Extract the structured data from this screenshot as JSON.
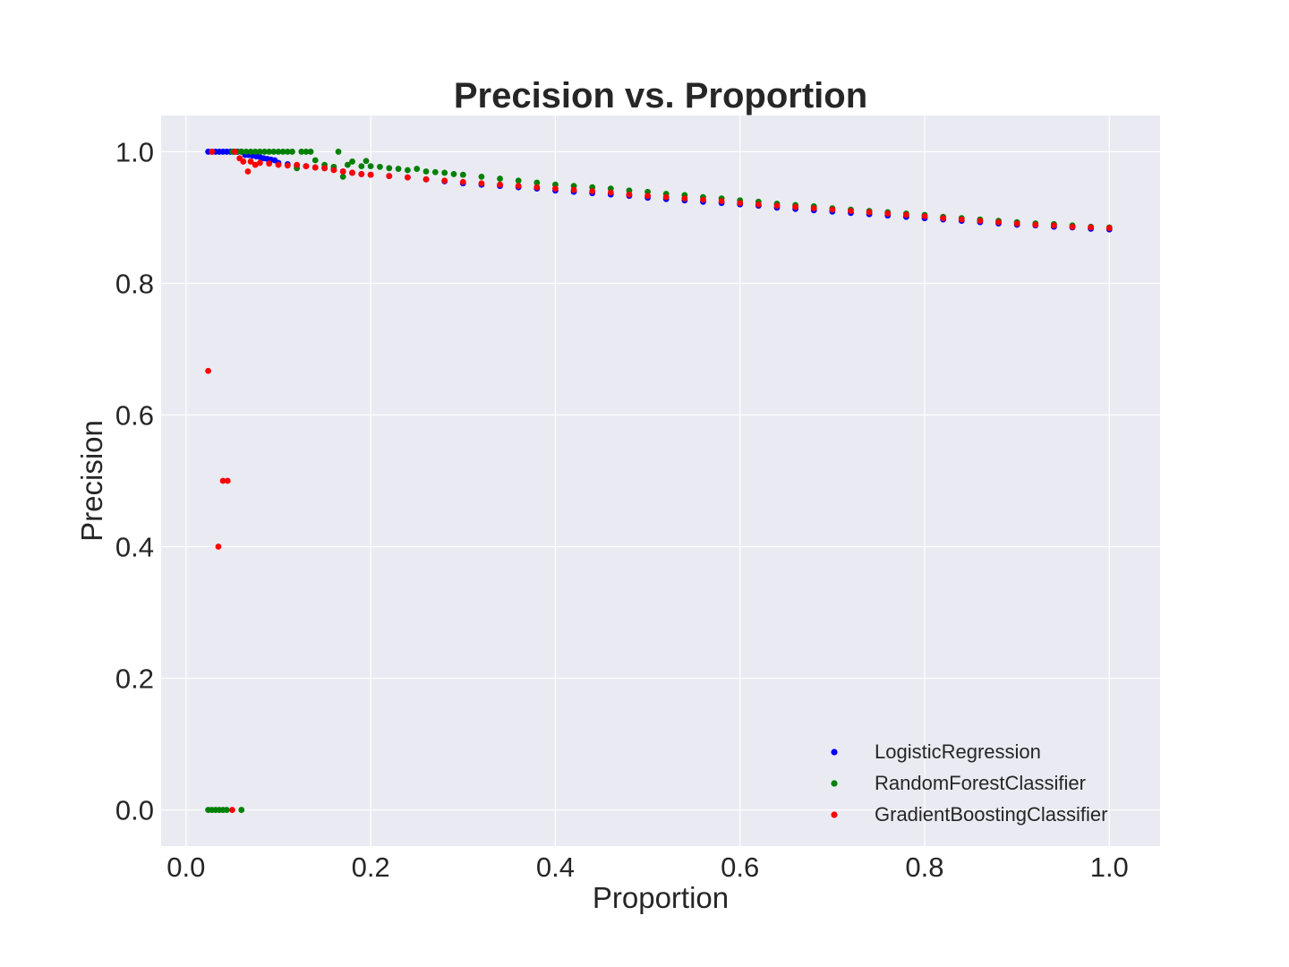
{
  "chart_data": {
    "type": "scatter",
    "title": "Precision vs. Proportion",
    "xlabel": "Proportion",
    "ylabel": "Precision",
    "xlim": [
      -0.027,
      1.055
    ],
    "ylim": [
      -0.055,
      1.055
    ],
    "xticks": [
      "0.0",
      "0.2",
      "0.4",
      "0.6",
      "0.8",
      "1.0"
    ],
    "yticks": [
      "0.0",
      "0.2",
      "0.4",
      "0.6",
      "0.8",
      "1.0"
    ],
    "grid": true,
    "legend_position": "bottom-right",
    "series": [
      {
        "name": "LogisticRegression",
        "color": "#0000ff",
        "points": [
          [
            0.024,
            1.0
          ],
          [
            0.028,
            1.0
          ],
          [
            0.032,
            1.0
          ],
          [
            0.036,
            1.0
          ],
          [
            0.04,
            1.0
          ],
          [
            0.044,
            1.0
          ],
          [
            0.048,
            1.0
          ],
          [
            0.052,
            1.0
          ],
          [
            0.056,
            1.0
          ],
          [
            0.06,
            1.0
          ],
          [
            0.064,
            0.995
          ],
          [
            0.068,
            0.995
          ],
          [
            0.072,
            0.994
          ],
          [
            0.076,
            0.993
          ],
          [
            0.08,
            0.992
          ],
          [
            0.084,
            0.99
          ],
          [
            0.088,
            0.989
          ],
          [
            0.092,
            0.988
          ],
          [
            0.096,
            0.987
          ],
          [
            0.1,
            0.983
          ],
          [
            0.11,
            0.981
          ],
          [
            0.12,
            0.979
          ],
          [
            0.13,
            0.978
          ],
          [
            0.14,
            0.976
          ],
          [
            0.15,
            0.975
          ],
          [
            0.16,
            0.973
          ],
          [
            0.17,
            0.97
          ],
          [
            0.18,
            0.968
          ],
          [
            0.19,
            0.966
          ],
          [
            0.2,
            0.965
          ],
          [
            0.22,
            0.963
          ],
          [
            0.24,
            0.961
          ],
          [
            0.26,
            0.958
          ],
          [
            0.28,
            0.955
          ],
          [
            0.3,
            0.952
          ],
          [
            0.32,
            0.95
          ],
          [
            0.34,
            0.948
          ],
          [
            0.36,
            0.946
          ],
          [
            0.38,
            0.944
          ],
          [
            0.4,
            0.941
          ],
          [
            0.42,
            0.939
          ],
          [
            0.44,
            0.937
          ],
          [
            0.46,
            0.935
          ],
          [
            0.48,
            0.933
          ],
          [
            0.5,
            0.93
          ],
          [
            0.52,
            0.928
          ],
          [
            0.54,
            0.926
          ],
          [
            0.56,
            0.924
          ],
          [
            0.58,
            0.922
          ],
          [
            0.6,
            0.92
          ],
          [
            0.62,
            0.918
          ],
          [
            0.64,
            0.915
          ],
          [
            0.66,
            0.913
          ],
          [
            0.68,
            0.911
          ],
          [
            0.7,
            0.909
          ],
          [
            0.72,
            0.907
          ],
          [
            0.74,
            0.905
          ],
          [
            0.76,
            0.903
          ],
          [
            0.78,
            0.901
          ],
          [
            0.8,
            0.899
          ],
          [
            0.82,
            0.897
          ],
          [
            0.84,
            0.895
          ],
          [
            0.86,
            0.893
          ],
          [
            0.88,
            0.891
          ],
          [
            0.9,
            0.889
          ],
          [
            0.92,
            0.888
          ],
          [
            0.94,
            0.886
          ],
          [
            0.96,
            0.885
          ],
          [
            0.98,
            0.883
          ],
          [
            1.0,
            0.882
          ]
        ]
      },
      {
        "name": "RandomForestClassifier",
        "color": "#008000",
        "points": [
          [
            0.024,
            0.0
          ],
          [
            0.028,
            0.0
          ],
          [
            0.032,
            0.0
          ],
          [
            0.036,
            0.0
          ],
          [
            0.04,
            0.0
          ],
          [
            0.044,
            0.0
          ],
          [
            0.06,
            0.0
          ],
          [
            0.05,
            1.0
          ],
          [
            0.055,
            1.0
          ],
          [
            0.06,
            1.0
          ],
          [
            0.065,
            1.0
          ],
          [
            0.07,
            1.0
          ],
          [
            0.075,
            1.0
          ],
          [
            0.08,
            1.0
          ],
          [
            0.085,
            1.0
          ],
          [
            0.09,
            1.0
          ],
          [
            0.095,
            1.0
          ],
          [
            0.1,
            1.0
          ],
          [
            0.105,
            1.0
          ],
          [
            0.11,
            1.0
          ],
          [
            0.115,
            1.0
          ],
          [
            0.125,
            1.0
          ],
          [
            0.13,
            1.0
          ],
          [
            0.135,
            1.0
          ],
          [
            0.165,
            1.0
          ],
          [
            0.12,
            0.975
          ],
          [
            0.14,
            0.987
          ],
          [
            0.15,
            0.98
          ],
          [
            0.16,
            0.977
          ],
          [
            0.17,
            0.962
          ],
          [
            0.175,
            0.98
          ],
          [
            0.18,
            0.985
          ],
          [
            0.19,
            0.978
          ],
          [
            0.195,
            0.986
          ],
          [
            0.2,
            0.978
          ],
          [
            0.21,
            0.977
          ],
          [
            0.22,
            0.975
          ],
          [
            0.23,
            0.974
          ],
          [
            0.24,
            0.972
          ],
          [
            0.25,
            0.974
          ],
          [
            0.26,
            0.97
          ],
          [
            0.27,
            0.969
          ],
          [
            0.28,
            0.968
          ],
          [
            0.29,
            0.966
          ],
          [
            0.3,
            0.965
          ],
          [
            0.32,
            0.962
          ],
          [
            0.34,
            0.959
          ],
          [
            0.36,
            0.956
          ],
          [
            0.38,
            0.953
          ],
          [
            0.4,
            0.95
          ],
          [
            0.42,
            0.948
          ],
          [
            0.44,
            0.946
          ],
          [
            0.46,
            0.944
          ],
          [
            0.48,
            0.941
          ],
          [
            0.5,
            0.939
          ],
          [
            0.52,
            0.936
          ],
          [
            0.54,
            0.934
          ],
          [
            0.56,
            0.931
          ],
          [
            0.58,
            0.929
          ],
          [
            0.6,
            0.926
          ],
          [
            0.62,
            0.924
          ],
          [
            0.64,
            0.921
          ],
          [
            0.66,
            0.919
          ],
          [
            0.68,
            0.917
          ],
          [
            0.7,
            0.914
          ],
          [
            0.72,
            0.912
          ],
          [
            0.74,
            0.91
          ],
          [
            0.76,
            0.908
          ],
          [
            0.78,
            0.906
          ],
          [
            0.8,
            0.904
          ],
          [
            0.82,
            0.901
          ],
          [
            0.84,
            0.899
          ],
          [
            0.86,
            0.897
          ],
          [
            0.88,
            0.895
          ],
          [
            0.9,
            0.893
          ],
          [
            0.92,
            0.891
          ],
          [
            0.94,
            0.89
          ],
          [
            0.96,
            0.888
          ],
          [
            0.98,
            0.886
          ],
          [
            1.0,
            0.885
          ]
        ]
      },
      {
        "name": "GradientBoostingClassifier",
        "color": "#ff0000",
        "points": [
          [
            0.024,
            0.667
          ],
          [
            0.04,
            0.5
          ],
          [
            0.045,
            0.5
          ],
          [
            0.035,
            0.4
          ],
          [
            0.05,
            0.0
          ],
          [
            0.028,
            1.0
          ],
          [
            0.053,
            1.0
          ],
          [
            0.058,
            0.99
          ],
          [
            0.062,
            0.985
          ],
          [
            0.067,
            0.97
          ],
          [
            0.07,
            0.985
          ],
          [
            0.075,
            0.98
          ],
          [
            0.08,
            0.983
          ],
          [
            0.09,
            0.982
          ],
          [
            0.1,
            0.98
          ],
          [
            0.11,
            0.979
          ],
          [
            0.12,
            0.98
          ],
          [
            0.13,
            0.978
          ],
          [
            0.14,
            0.976
          ],
          [
            0.15,
            0.975
          ],
          [
            0.16,
            0.972
          ],
          [
            0.17,
            0.97
          ],
          [
            0.18,
            0.968
          ],
          [
            0.19,
            0.966
          ],
          [
            0.2,
            0.965
          ],
          [
            0.22,
            0.963
          ],
          [
            0.24,
            0.961
          ],
          [
            0.26,
            0.958
          ],
          [
            0.28,
            0.956
          ],
          [
            0.3,
            0.954
          ],
          [
            0.32,
            0.952
          ],
          [
            0.34,
            0.95
          ],
          [
            0.36,
            0.948
          ],
          [
            0.38,
            0.946
          ],
          [
            0.4,
            0.944
          ],
          [
            0.42,
            0.942
          ],
          [
            0.44,
            0.94
          ],
          [
            0.46,
            0.938
          ],
          [
            0.48,
            0.935
          ],
          [
            0.5,
            0.933
          ],
          [
            0.52,
            0.931
          ],
          [
            0.54,
            0.929
          ],
          [
            0.56,
            0.927
          ],
          [
            0.58,
            0.925
          ],
          [
            0.6,
            0.922
          ],
          [
            0.62,
            0.92
          ],
          [
            0.64,
            0.918
          ],
          [
            0.66,
            0.916
          ],
          [
            0.68,
            0.914
          ],
          [
            0.7,
            0.912
          ],
          [
            0.72,
            0.91
          ],
          [
            0.74,
            0.908
          ],
          [
            0.76,
            0.906
          ],
          [
            0.78,
            0.904
          ],
          [
            0.8,
            0.902
          ],
          [
            0.82,
            0.899
          ],
          [
            0.84,
            0.897
          ],
          [
            0.86,
            0.895
          ],
          [
            0.88,
            0.893
          ],
          [
            0.9,
            0.891
          ],
          [
            0.92,
            0.889
          ],
          [
            0.94,
            0.888
          ],
          [
            0.96,
            0.886
          ],
          [
            0.98,
            0.885
          ],
          [
            1.0,
            0.884
          ]
        ]
      }
    ]
  }
}
